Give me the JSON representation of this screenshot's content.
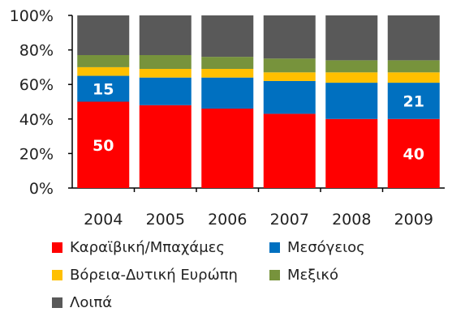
{
  "chart_data": {
    "type": "bar",
    "stacked": true,
    "categories": [
      "2004",
      "2005",
      "2006",
      "2007",
      "2008",
      "2009"
    ],
    "series": [
      {
        "name": "Καραϊβική/Μπαχάμες",
        "color": "#ff0000",
        "values": [
          50,
          48,
          46,
          43,
          40,
          40
        ]
      },
      {
        "name": "Μεσόγειος",
        "color": "#0070c0",
        "values": [
          15,
          16,
          18,
          19,
          21,
          21
        ]
      },
      {
        "name": "Βόρεια-Δυτική Ευρώπη",
        "color": "#ffc000",
        "values": [
          5,
          5,
          5,
          5,
          6,
          6
        ]
      },
      {
        "name": "Μεξικό",
        "color": "#77933c",
        "values": [
          7,
          8,
          7,
          8,
          7,
          7
        ]
      },
      {
        "name": "Λοιπά",
        "color": "#595959",
        "values": [
          23,
          23,
          24,
          25,
          26,
          26
        ]
      }
    ],
    "yticks": [
      "0%",
      "20%",
      "40%",
      "60%",
      "80%",
      "100%"
    ],
    "ylim": [
      0,
      100
    ],
    "data_labels": [
      {
        "category": "2004",
        "series": "Καραϊβική/Μπαχάμες",
        "text": "50"
      },
      {
        "category": "2004",
        "series": "Μεσόγειος",
        "text": "15"
      },
      {
        "category": "2009",
        "series": "Καραϊβική/Μπαχάμες",
        "text": "40"
      },
      {
        "category": "2009",
        "series": "Μεσόγειος",
        "text": "21"
      }
    ],
    "legend_position": "bottom"
  }
}
